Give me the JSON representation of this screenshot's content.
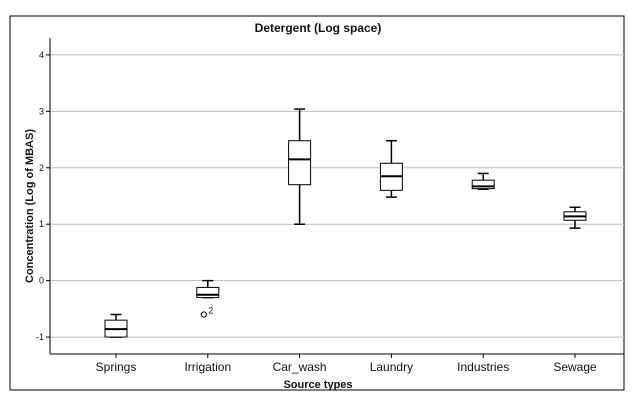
{
  "chart_data": {
    "type": "box",
    "title": "Detergent (Log space)",
    "xlabel": "Source types",
    "ylabel": "Concentration (Log of MBAS)",
    "ylim": [
      -1.3,
      4.3
    ],
    "yticks": [
      -1,
      0,
      1,
      2,
      3,
      4
    ],
    "grid": "horizontal",
    "series": [
      {
        "category": "Springs",
        "min": -1.0,
        "q1": -1.0,
        "median": -0.86,
        "q3": -0.7,
        "max": -0.6
      },
      {
        "category": "Irrigation",
        "min": -0.3,
        "q1": -0.3,
        "median": -0.25,
        "q3": -0.12,
        "max": 0.0
      },
      {
        "category": "Car_wash",
        "min": 1.0,
        "q1": 1.7,
        "median": 2.15,
        "q3": 2.48,
        "max": 3.04
      },
      {
        "category": "Laundry",
        "min": 1.48,
        "q1": 1.6,
        "median": 1.85,
        "q3": 2.08,
        "max": 2.48
      },
      {
        "category": "Industries",
        "min": 1.62,
        "q1": 1.63,
        "median": 1.67,
        "q3": 1.78,
        "max": 1.9
      },
      {
        "category": "Sewage",
        "min": 0.93,
        "q1": 1.07,
        "median": 1.14,
        "q3": 1.22,
        "max": 1.3
      }
    ],
    "outliers": [
      {
        "category": "Irrigation",
        "value": -0.6,
        "label": "2"
      }
    ]
  }
}
